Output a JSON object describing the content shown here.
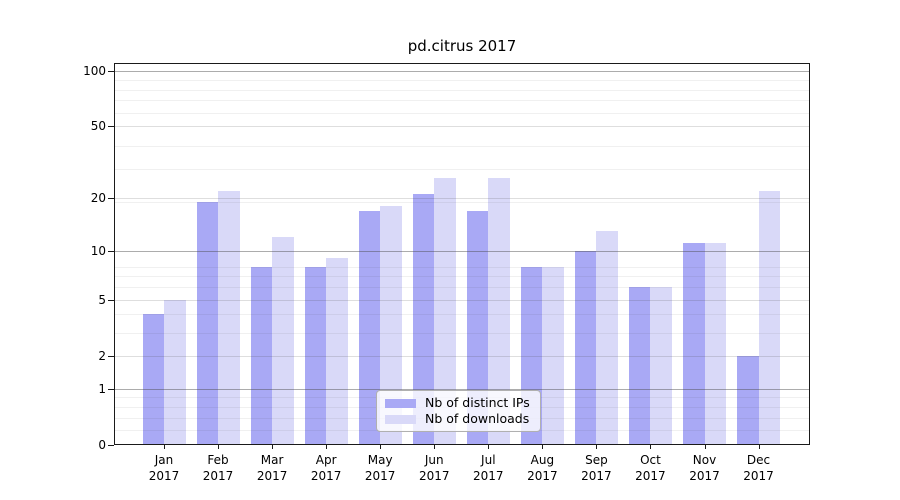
{
  "title": "pd.citrus 2017",
  "legend": {
    "items": [
      {
        "label": "Nb of distinct IPs",
        "color": "#a9a9f5"
      },
      {
        "label": "Nb of downloads",
        "color": "#d9d9f8"
      }
    ]
  },
  "colors": {
    "bar_distinct_ips": "#a9a9f5",
    "bar_downloads": "#d9d9f8",
    "axis": "#1a1a1a",
    "grid_major_dark": "rgba(70,70,70,0.45)",
    "grid_major_light": "rgba(70,70,70,0.18)",
    "grid_minor": "rgba(70,70,70,0.08)",
    "legend_background": "rgba(255,255,255,0.8)"
  },
  "chart_data": {
    "type": "bar",
    "title": "pd.citrus 2017",
    "categories": [
      "Jan 2017",
      "Feb 2017",
      "Mar 2017",
      "Apr 2017",
      "May 2017",
      "Jun 2017",
      "Jul 2017",
      "Aug 2017",
      "Sep 2017",
      "Oct 2017",
      "Nov 2017",
      "Dec 2017"
    ],
    "series": [
      {
        "name": "Nb of distinct IPs",
        "color": "#a9a9f5",
        "values": [
          4,
          19,
          8,
          8,
          17,
          21,
          17,
          8,
          10,
          6,
          11,
          2
        ]
      },
      {
        "name": "Nb of downloads",
        "color": "#d9d9f8",
        "values": [
          5,
          22,
          12,
          9,
          18,
          26,
          26,
          8,
          13,
          6,
          11,
          22
        ]
      }
    ],
    "xlabel": "",
    "ylabel": "",
    "yscale": "log1p",
    "ylim": [
      0,
      110
    ],
    "yticks": [
      0,
      1,
      2,
      5,
      10,
      20,
      50,
      100
    ],
    "ytick_labels": [
      "0",
      "1",
      "2",
      "5",
      "10",
      "20",
      "50",
      "100"
    ],
    "grid": {
      "dark": [
        1,
        10,
        100
      ],
      "light": [
        2,
        5,
        20,
        50
      ],
      "minor": [
        0.2,
        0.4,
        0.6,
        0.8,
        3,
        4,
        6,
        7,
        8,
        19,
        29,
        39,
        59,
        69,
        79,
        89
      ]
    },
    "legend_position": "inside lower center",
    "grid_on": true
  }
}
